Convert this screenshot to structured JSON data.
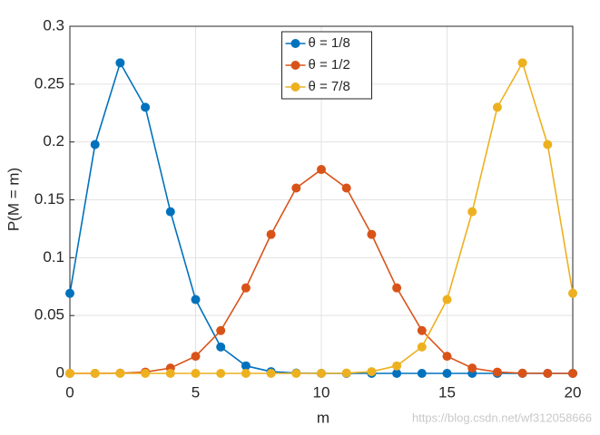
{
  "chart_data": {
    "type": "line",
    "xlabel": "m",
    "ylabel": "P(M = m)",
    "x": [
      0,
      1,
      2,
      3,
      4,
      5,
      6,
      7,
      8,
      9,
      10,
      11,
      12,
      13,
      14,
      15,
      16,
      17,
      18,
      19,
      20
    ],
    "series": [
      {
        "name": "θ = 1/8",
        "color": "#0072BD",
        "values": [
          0.0692,
          0.1978,
          0.2684,
          0.23,
          0.1397,
          0.0638,
          0.0228,
          0.0065,
          0.0015,
          0.0003,
          0,
          0,
          0,
          0,
          0,
          0,
          0,
          0,
          0,
          0,
          0
        ]
      },
      {
        "name": "θ = 1/2",
        "color": "#D95319",
        "values": [
          0,
          0,
          0.0002,
          0.0011,
          0.0046,
          0.0148,
          0.037,
          0.0739,
          0.1201,
          0.1602,
          0.1762,
          0.1602,
          0.1201,
          0.0739,
          0.037,
          0.0148,
          0.0046,
          0.0011,
          0.0002,
          0,
          0
        ]
      },
      {
        "name": "θ = 7/8",
        "color": "#EDB120",
        "values": [
          0,
          0,
          0,
          0,
          0,
          0,
          0,
          0,
          0,
          0,
          0,
          0.0003,
          0.0015,
          0.0065,
          0.0228,
          0.0638,
          0.1397,
          0.23,
          0.2684,
          0.1978,
          0.0692
        ]
      }
    ],
    "xlim": [
      0,
      20
    ],
    "xticks": [
      0,
      5,
      10,
      15,
      20
    ],
    "ylim": [
      0,
      0.3
    ],
    "yticks": [
      0,
      0.05,
      0.1,
      0.15,
      0.2,
      0.25,
      0.3
    ],
    "grid": true,
    "legend": "top",
    "watermark": "https://blog.csdn.net/wf312058666"
  }
}
